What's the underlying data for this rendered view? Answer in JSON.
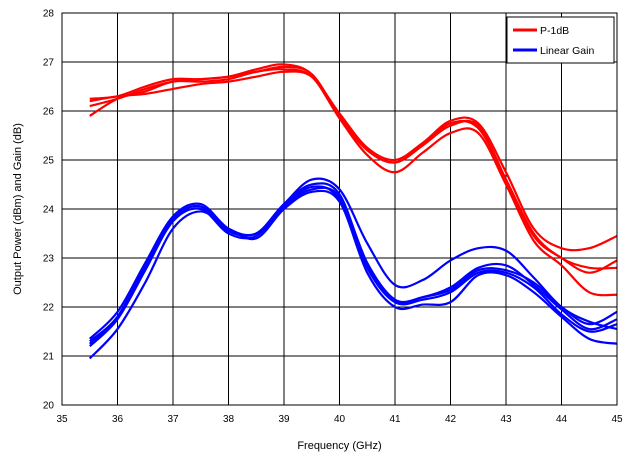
{
  "chart_data": {
    "type": "line",
    "title": "",
    "xlabel": "Frequency (GHz)",
    "ylabel": "Output Power (dBm) and Gain (dB)",
    "xlim": [
      35,
      45
    ],
    "ylim": [
      20,
      28
    ],
    "xticks": [
      "35",
      "36",
      "37",
      "38",
      "39",
      "40",
      "41",
      "42",
      "43",
      "44",
      "45"
    ],
    "yticks": [
      "20",
      "21",
      "22",
      "23",
      "24",
      "25",
      "26",
      "27",
      "28"
    ],
    "grid": true,
    "legend_position": "top-right",
    "legend": [
      {
        "label": "P-1dB",
        "color": "#ff0000"
      },
      {
        "label": "Linear Gain",
        "color": "#0000ff"
      }
    ],
    "series": [
      {
        "group": "P-1dB",
        "color": "#ff0000",
        "x": [
          35.5,
          36,
          36.5,
          37,
          37.5,
          38,
          38.5,
          39,
          39.5,
          40,
          40.5,
          41,
          41.5,
          42,
          42.5,
          43,
          43.5,
          44,
          44.5,
          45
        ],
        "y": [
          26.25,
          26.3,
          26.5,
          26.65,
          26.65,
          26.7,
          26.85,
          26.95,
          26.75,
          25.9,
          25.2,
          24.95,
          25.3,
          25.75,
          25.65,
          24.6,
          23.5,
          23.0,
          22.8,
          22.8
        ]
      },
      {
        "group": "P-1dB",
        "color": "#ff0000",
        "x": [
          35.5,
          36,
          36.5,
          37,
          37.5,
          38,
          38.5,
          39,
          39.5,
          40,
          40.5,
          41,
          41.5,
          42,
          42.5,
          43,
          43.5,
          44,
          44.5,
          45
        ],
        "y": [
          25.9,
          26.25,
          26.4,
          26.6,
          26.6,
          26.65,
          26.8,
          26.85,
          26.7,
          25.85,
          25.1,
          24.75,
          25.15,
          25.55,
          25.55,
          24.5,
          23.35,
          22.85,
          22.3,
          22.25
        ]
      },
      {
        "group": "P-1dB",
        "color": "#ff0000",
        "x": [
          35.5,
          36,
          36.5,
          37,
          37.5,
          38,
          38.5,
          39,
          39.5,
          40,
          40.5,
          41,
          41.5,
          42,
          42.5,
          43,
          43.5,
          44,
          44.5,
          45
        ],
        "y": [
          26.2,
          26.3,
          26.35,
          26.45,
          26.55,
          26.6,
          26.7,
          26.8,
          26.7,
          25.95,
          25.25,
          25.0,
          25.35,
          25.8,
          25.75,
          24.75,
          23.6,
          23.2,
          23.2,
          23.45
        ]
      },
      {
        "group": "P-1dB",
        "color": "#ff0000",
        "x": [
          35.5,
          36,
          36.5,
          37,
          37.5,
          38,
          38.5,
          39,
          39.5,
          40,
          40.5,
          41,
          41.5,
          42,
          42.5,
          43,
          43.5,
          44,
          44.5,
          45
        ],
        "y": [
          26.1,
          26.25,
          26.45,
          26.6,
          26.65,
          26.7,
          26.8,
          26.9,
          26.75,
          25.9,
          25.2,
          24.95,
          25.3,
          25.7,
          25.7,
          24.6,
          23.45,
          23.0,
          22.7,
          22.95
        ]
      },
      {
        "group": "Linear Gain",
        "color": "#0000ff",
        "x": [
          35.5,
          36,
          36.5,
          37,
          37.5,
          38,
          38.5,
          39,
          39.5,
          40,
          40.5,
          41,
          41.5,
          42,
          42.5,
          43,
          43.5,
          44,
          44.5,
          45
        ],
        "y": [
          21.3,
          21.8,
          22.8,
          23.8,
          24.05,
          23.55,
          23.5,
          24.05,
          24.45,
          24.2,
          22.8,
          22.1,
          22.2,
          22.35,
          22.75,
          22.75,
          22.5,
          22.0,
          21.65,
          21.9
        ]
      },
      {
        "group": "Linear Gain",
        "color": "#0000ff",
        "x": [
          35.5,
          36,
          36.5,
          37,
          37.5,
          38,
          38.5,
          39,
          39.5,
          40,
          40.5,
          41,
          41.5,
          42,
          42.5,
          43,
          43.5,
          44,
          44.5,
          45
        ],
        "y": [
          20.95,
          21.55,
          22.5,
          23.6,
          23.95,
          23.6,
          23.4,
          24.0,
          24.35,
          24.15,
          22.7,
          22.0,
          22.05,
          22.1,
          22.65,
          22.65,
          22.3,
          21.8,
          21.35,
          21.25
        ]
      },
      {
        "group": "Linear Gain",
        "color": "#0000ff",
        "x": [
          35.5,
          36,
          36.5,
          37,
          37.5,
          38,
          38.5,
          39,
          39.5,
          40,
          40.5,
          41,
          41.5,
          42,
          42.5,
          43,
          43.5,
          44,
          44.5,
          45
        ],
        "y": [
          21.35,
          21.9,
          22.9,
          23.85,
          24.1,
          23.6,
          23.5,
          24.1,
          24.6,
          24.4,
          23.3,
          22.45,
          22.55,
          22.95,
          23.2,
          23.15,
          22.6,
          22.0,
          21.7,
          21.55
        ]
      },
      {
        "group": "Linear Gain",
        "color": "#0000ff",
        "x": [
          35.5,
          36,
          36.5,
          37,
          37.5,
          38,
          38.5,
          39,
          39.5,
          40,
          40.5,
          41,
          41.5,
          42,
          42.5,
          43,
          43.5,
          44,
          44.5,
          45
        ],
        "y": [
          21.2,
          21.75,
          22.75,
          23.75,
          24.0,
          23.5,
          23.45,
          24.05,
          24.4,
          24.25,
          22.9,
          22.15,
          22.2,
          22.4,
          22.8,
          22.85,
          22.45,
          21.95,
          21.55,
          21.75
        ]
      },
      {
        "group": "Linear Gain",
        "color": "#0000ff",
        "x": [
          35.5,
          36,
          36.5,
          37,
          37.5,
          38,
          38.5,
          39,
          39.5,
          40,
          40.5,
          41,
          41.5,
          42,
          42.5,
          43,
          43.5,
          44,
          44.5,
          45
        ],
        "y": [
          21.25,
          21.8,
          22.85,
          23.8,
          24.05,
          23.55,
          23.5,
          24.1,
          24.5,
          24.3,
          22.85,
          22.1,
          22.15,
          22.3,
          22.7,
          22.7,
          22.4,
          21.85,
          21.5,
          21.65
        ]
      }
    ]
  }
}
